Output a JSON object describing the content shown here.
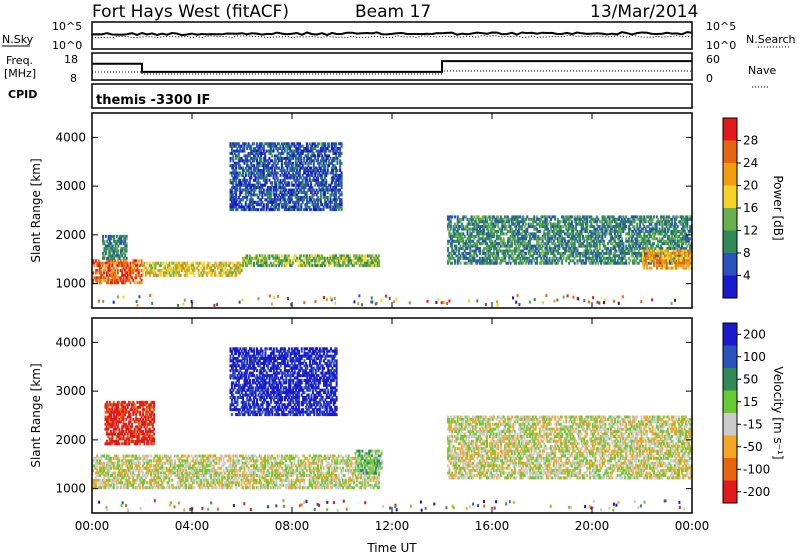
{
  "header": {
    "station": "Fort Hays West (fitACF)",
    "beam": "Beam 17",
    "date": "13/Mar/2014"
  },
  "top_panels": {
    "nsky_label": "N.Sky",
    "nsky_ticks": [
      "10^5",
      "10^0"
    ],
    "nsearch_label": "N.Search",
    "nsearch_ticks": [
      "10^5",
      "10^0"
    ],
    "freq_label": "Freq.",
    "freq_unit": "[MHz]",
    "freq_ticks": [
      "18",
      "8"
    ],
    "nave_label": "Nave",
    "nave_ticks": [
      "60",
      "0"
    ],
    "cpid_label": "CPID",
    "cpid_value": "themis -3300 IF",
    "freq_series": [
      [
        0,
        14
      ],
      [
        2,
        14
      ],
      [
        2,
        11
      ],
      [
        14,
        11
      ],
      [
        14,
        15
      ],
      [
        24,
        15
      ]
    ]
  },
  "chart_data": [
    {
      "type": "heatmap",
      "name": "power",
      "ylabel": "Slant Range [km]",
      "xlabel": "Time UT",
      "xlim": [
        0,
        24
      ],
      "ylim": [
        500,
        4500
      ],
      "x_ticks": [
        "00:00",
        "04:00",
        "08:00",
        "12:00",
        "16:00",
        "20:00",
        "00:00"
      ],
      "y_ticks": [
        "1000",
        "2000",
        "3000",
        "4000"
      ],
      "colorbar": {
        "label": "Power [dB]",
        "ticks": [
          "4",
          "8",
          "12",
          "16",
          "20",
          "24",
          "28"
        ],
        "colors": [
          "#1a1acc",
          "#2a52be",
          "#2e8b57",
          "#6ab04c",
          "#f5d327",
          "#f39c12",
          "#e8650f",
          "#e31a1c"
        ]
      },
      "regions": [
        {
          "x": [
            0.0,
            2.0
          ],
          "y": [
            1000,
            1500
          ],
          "level": 6
        },
        {
          "x": [
            0.4,
            1.4
          ],
          "y": [
            1500,
            2000
          ],
          "level": 2
        },
        {
          "x": [
            2.0,
            6.0
          ],
          "y": [
            1150,
            1450
          ],
          "level": 4
        },
        {
          "x": [
            6.0,
            11.5
          ],
          "y": [
            1350,
            1600
          ],
          "level": 3
        },
        {
          "x": [
            5.5,
            10.0
          ],
          "y": [
            2500,
            3900
          ],
          "level": 1
        },
        {
          "x": [
            14.2,
            24.0
          ],
          "y": [
            1400,
            2400
          ],
          "level": 2
        },
        {
          "x": [
            22.0,
            24.0
          ],
          "y": [
            1300,
            1700
          ],
          "level": 5
        }
      ]
    },
    {
      "type": "heatmap",
      "name": "velocity",
      "ylabel": "Slant Range [km]",
      "xlabel": "Time UT",
      "xlim": [
        0,
        24
      ],
      "ylim": [
        500,
        4500
      ],
      "x_ticks": [
        "00:00",
        "04:00",
        "08:00",
        "12:00",
        "16:00",
        "20:00",
        "00:00"
      ],
      "y_ticks": [
        "1000",
        "2000",
        "3000",
        "4000"
      ],
      "colorbar": {
        "label": "Velocity [m s⁻¹]",
        "ticks": [
          "200",
          "100",
          "50",
          "15",
          "-15",
          "-50",
          "-100",
          "-200"
        ],
        "colors": [
          "#1a1acc",
          "#2a52be",
          "#2e8b57",
          "#66cc33",
          "#cccccc",
          "#f5a623",
          "#e8650f",
          "#e31a1c"
        ]
      },
      "regions": [
        {
          "x": [
            0.0,
            11.5
          ],
          "y": [
            1000,
            1700
          ],
          "level": 4
        },
        {
          "x": [
            0.5,
            2.5
          ],
          "y": [
            1900,
            2800
          ],
          "level": 7
        },
        {
          "x": [
            5.5,
            9.8
          ],
          "y": [
            2500,
            3900
          ],
          "level": 0
        },
        {
          "x": [
            10.5,
            11.6
          ],
          "y": [
            1300,
            1800
          ],
          "level": 3
        },
        {
          "x": [
            14.2,
            24.0
          ],
          "y": [
            1200,
            2500
          ],
          "level": 4
        }
      ]
    }
  ],
  "xaxis_label": "Time UT"
}
